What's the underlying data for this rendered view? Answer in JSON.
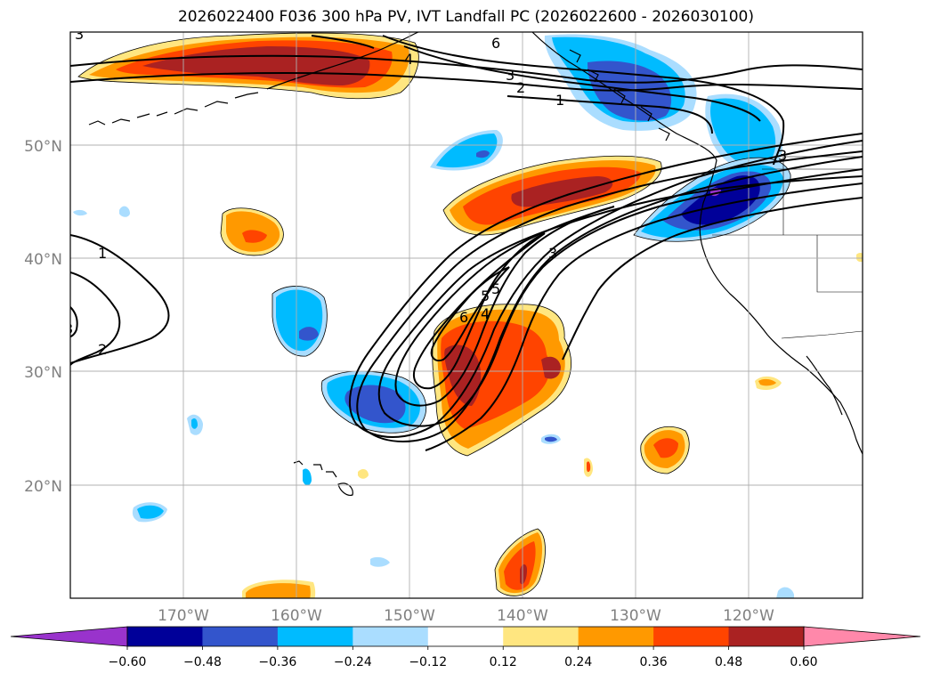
{
  "title": "2026022400 F036 300 hPa PV, IVT Landfall PC (2026022600 - 2026030100)",
  "map": {
    "lat_labels": [
      "50°N",
      "40°N",
      "30°N",
      "20°N"
    ],
    "lon_labels": [
      "170°W",
      "160°W",
      "150°W",
      "140°W",
      "130°W",
      "120°W"
    ],
    "contour_labels": [
      "1",
      "2",
      "3",
      "4",
      "5",
      "6",
      "1",
      "2",
      "3",
      "3",
      "4",
      "5",
      "6",
      "3",
      "3"
    ]
  },
  "colorbar": {
    "colors": [
      "#9933cc",
      "#000099",
      "#3355cc",
      "#00bbff",
      "#aaddff",
      "#ffffff",
      "#ffe680",
      "#ff9900",
      "#ff4400",
      "#aa2222",
      "#ff88aa"
    ],
    "tick_labels": [
      "−0.60",
      "−0.48",
      "−0.36",
      "−0.24",
      "−0.12",
      "0.12",
      "0.24",
      "0.36",
      "0.48",
      "0.60"
    ]
  }
}
